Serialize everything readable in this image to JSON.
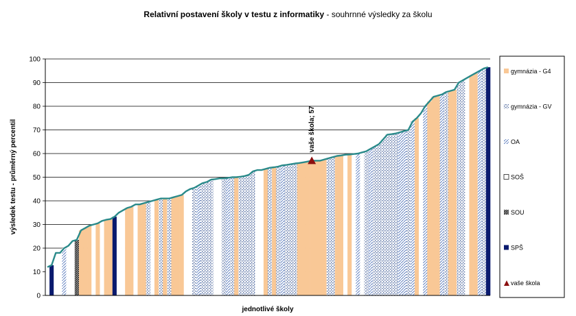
{
  "chart_data": {
    "type": "bar",
    "title": "Relativní postavení školy v testu z informatiky",
    "subtitle": "- souhrnné výsledky za školu",
    "xlabel": "jednotlivé školy",
    "ylabel": "výsledek testu - průměrný percentil",
    "ylim": [
      0,
      100
    ],
    "yticks": [
      "0",
      "10",
      "20",
      "30",
      "40",
      "50",
      "60",
      "70",
      "80",
      "90",
      "100"
    ],
    "grid": true,
    "legend_position": "right",
    "legend": [
      {
        "key": "G4",
        "label": "gymnázia - G4"
      },
      {
        "key": "GV",
        "label": "gymnázia - GV"
      },
      {
        "key": "OA",
        "label": "OA"
      },
      {
        "key": "SOS",
        "label": "SOŠ"
      },
      {
        "key": "SOU",
        "label": "SOU"
      },
      {
        "key": "SPS",
        "label": "SPŠ"
      },
      {
        "key": "MY",
        "label": "vaše škola"
      }
    ],
    "colors": {
      "G4": "#f9c896",
      "GV": "#6d87b4",
      "OA": "#90a6d4",
      "SPS": "#0a1a6e",
      "SOU": "#303030",
      "marker": "#8b1010",
      "line": "#2a8a8a"
    },
    "types": [
      "SOS",
      "SPS",
      "SOS",
      "SOS",
      "OA",
      "SOS",
      "SOS",
      "SOU",
      "G4",
      "G4",
      "G4",
      "SOS",
      "G4",
      "SOS",
      "G4",
      "G4",
      "SPS",
      "SOS",
      "SOS",
      "G4",
      "G4",
      "SOS",
      "G4",
      "G4",
      "GV",
      "SOS",
      "G4",
      "GV",
      "G4",
      "GV",
      "G4",
      "G4",
      "G4",
      "SOS",
      "SOS",
      "GV",
      "OA",
      "GV",
      "GV",
      "GV",
      "SOS",
      "SOS",
      "GV",
      "OA",
      "GV",
      "G4",
      "GV",
      "GV",
      "GV",
      "GV",
      "SOS",
      "SOS",
      "G4",
      "GV",
      "G4",
      "GV",
      "OA",
      "GV",
      "GV",
      "GV",
      "G4",
      "G4",
      "G4",
      "G4",
      "G4",
      "G4",
      "G4",
      "GV",
      "GV",
      "G4",
      "G4",
      "SOS",
      "G4",
      "SOS",
      "OA",
      "SOS",
      "GV",
      "OA",
      "GV",
      "GV",
      "GV",
      "GV",
      "GV",
      "GV",
      "OA",
      "OA",
      "GV",
      "OA",
      "G4",
      "SOS",
      "OA",
      "G4",
      "G4",
      "G4",
      "OA",
      "GV",
      "G4",
      "G4",
      "GV",
      "GV",
      "SOS",
      "G4",
      "G4",
      "OA",
      "GV",
      "SPS"
    ],
    "values": [
      12,
      12.8,
      18,
      18,
      20,
      21,
      23,
      23.5,
      27.5,
      28.5,
      29.5,
      30,
      30.5,
      31.5,
      32,
      32.3,
      33.3,
      35,
      36,
      37,
      37.5,
      38.5,
      38.5,
      39,
      39.5,
      40,
      40.5,
      41,
      41,
      41,
      41.5,
      42,
      42.5,
      44,
      45,
      45.5,
      46.5,
      47.5,
      48,
      49,
      49.2,
      49.5,
      49.5,
      49.7,
      50,
      50,
      50.2,
      50.5,
      51,
      52.5,
      53,
      53,
      53.5,
      54,
      54.2,
      54.5,
      55,
      55.2,
      55.5,
      55.8,
      56,
      56.3,
      56.6,
      57,
      57,
      57,
      57.5,
      58,
      58.5,
      59,
      59.2,
      59.5,
      59.6,
      59.8,
      60,
      60.5,
      61,
      62,
      63,
      64,
      66,
      68,
      68.2,
      68.5,
      69,
      69.5,
      70,
      73.5,
      75,
      77,
      80,
      82,
      84,
      84.5,
      85,
      86,
      86.5,
      87,
      90,
      91,
      92,
      93,
      94,
      95,
      96,
      96.5
    ],
    "your_school": {
      "value": 57,
      "label": "vaše škola; 57"
    }
  }
}
